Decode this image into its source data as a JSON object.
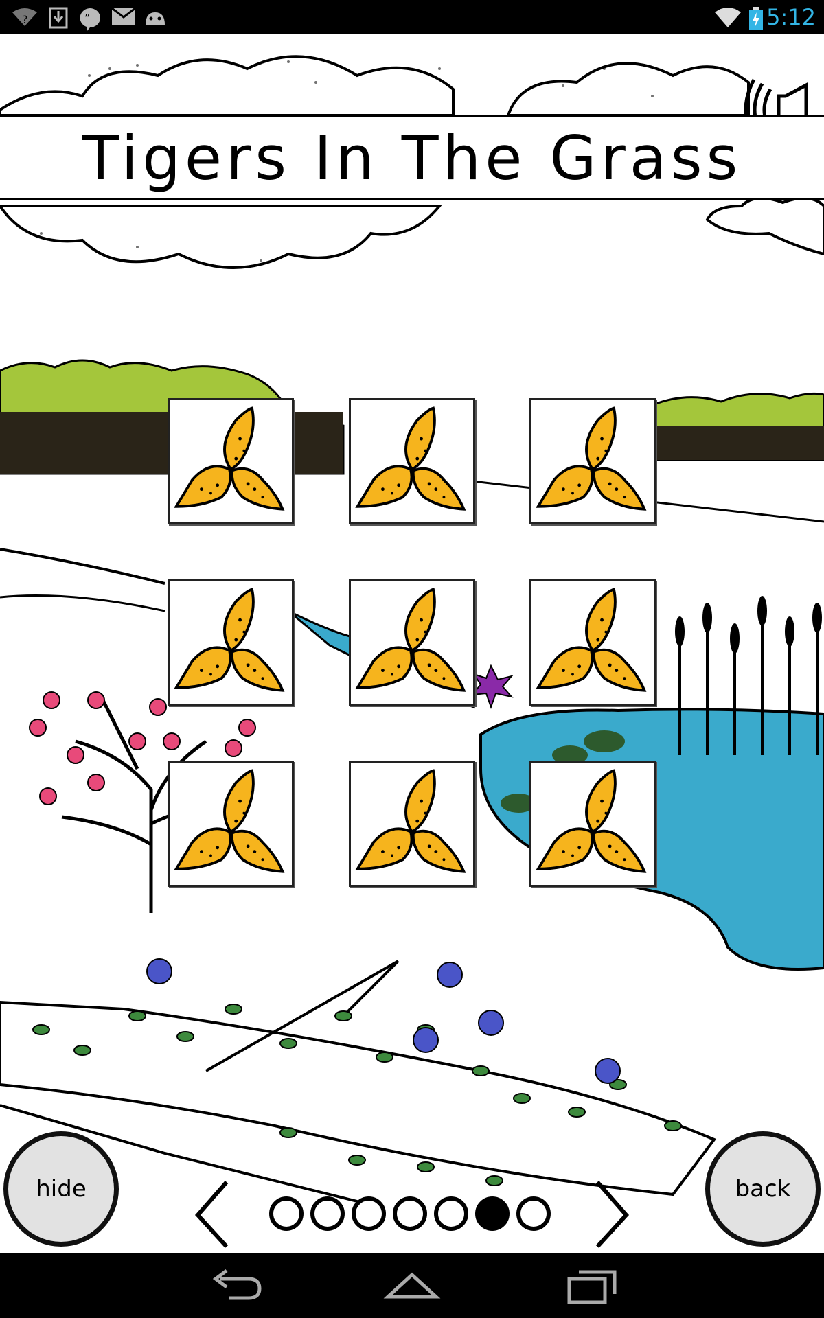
{
  "status_bar": {
    "time": "5:12",
    "left_icons": [
      "wifi-question-icon",
      "download-icon",
      "hangouts-icon",
      "email-icon",
      "android-debug-icon"
    ],
    "right_icons": [
      "wifi-icon",
      "battery-charging-icon"
    ],
    "accent_color": "#33b5e5"
  },
  "scene": {
    "title": "Tigers In The Grass",
    "sound_icon": "speaker-icon"
  },
  "cards": {
    "back_icon": "orange-leaf-trefoil-icon",
    "count": 9,
    "leaf_color": "#f6b41d"
  },
  "controls": {
    "hide_label": "hide",
    "back_label": "back"
  },
  "pager": {
    "total_pages": 7,
    "current_page": 6
  },
  "nav_bar": {
    "icons": [
      "back-arrow-icon",
      "home-icon",
      "recent-apps-icon"
    ]
  }
}
